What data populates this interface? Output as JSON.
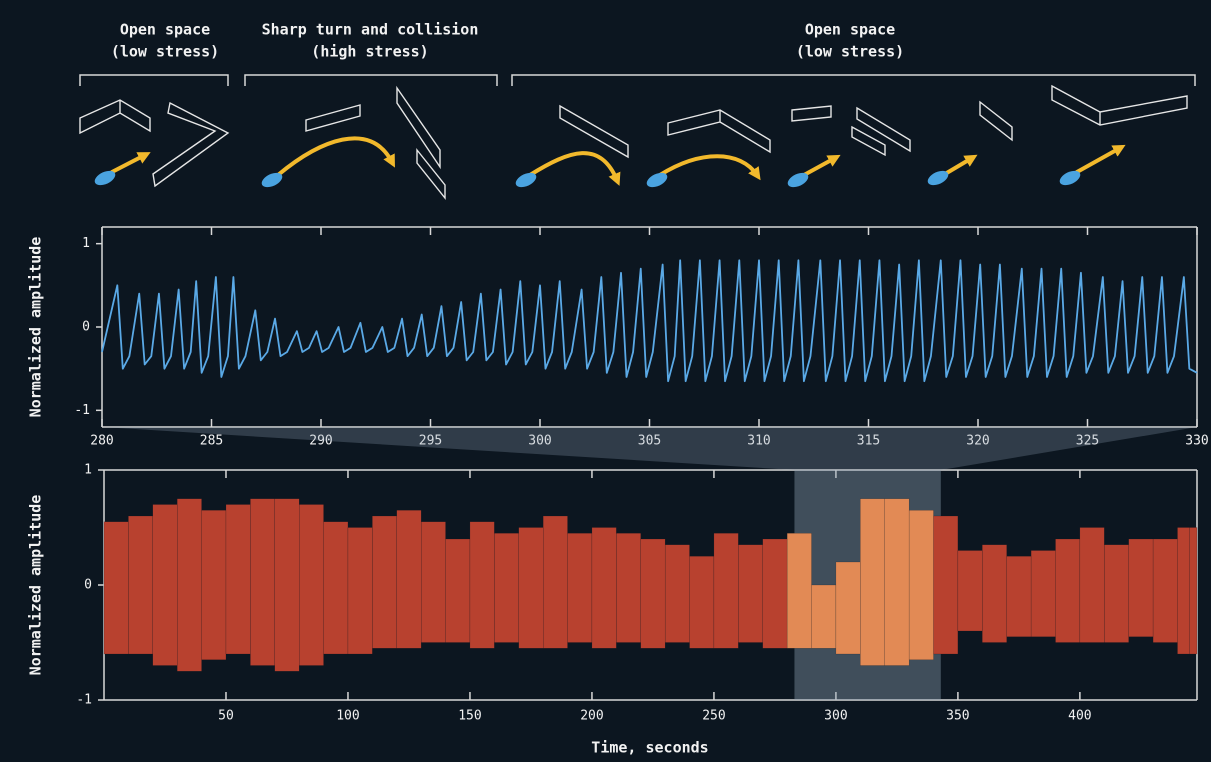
{
  "annotations": [
    {
      "lines": [
        "Open space",
        "(low stress)"
      ]
    },
    {
      "lines": [
        "Sharp turn and collision",
        "(high stress)"
      ]
    },
    {
      "lines": [
        "Open space",
        "(low stress)"
      ]
    }
  ],
  "chart_data": [
    {
      "type": "line",
      "ylabel": "Normalized amplitude",
      "color": "#5aa9e6",
      "xlim": [
        280,
        330
      ],
      "ylim": [
        -1.2,
        1.2
      ],
      "xticks": [
        280,
        285,
        290,
        295,
        300,
        305,
        310,
        315,
        320,
        325,
        330
      ],
      "yticks": [
        1,
        0,
        -1
      ],
      "x": [
        280.0,
        280.7,
        280.95,
        281.25,
        281.7,
        281.95,
        282.25,
        282.6,
        282.85,
        283.15,
        283.5,
        283.75,
        284.05,
        284.3,
        284.55,
        284.85,
        285.2,
        285.45,
        285.75,
        286.0,
        286.25,
        286.55,
        287.0,
        287.25,
        287.55,
        287.9,
        288.15,
        288.45,
        288.9,
        289.15,
        289.45,
        289.8,
        290.05,
        290.35,
        290.8,
        291.05,
        291.35,
        291.8,
        292.05,
        292.35,
        292.8,
        293.05,
        293.35,
        293.7,
        293.95,
        294.25,
        294.6,
        294.85,
        295.15,
        295.5,
        295.75,
        296.05,
        296.4,
        296.65,
        296.95,
        297.3,
        297.55,
        297.85,
        298.2,
        298.45,
        298.75,
        299.1,
        299.35,
        299.65,
        300.0,
        300.25,
        300.55,
        300.9,
        301.15,
        301.45,
        301.9,
        302.15,
        302.45,
        302.8,
        303.05,
        303.35,
        303.7,
        303.95,
        304.25,
        304.6,
        304.85,
        305.15,
        305.6,
        305.85,
        306.15,
        306.4,
        306.65,
        306.95,
        307.3,
        307.55,
        307.85,
        308.2,
        308.45,
        308.75,
        309.1,
        309.35,
        309.65,
        310.0,
        310.25,
        310.55,
        310.9,
        311.15,
        311.45,
        311.8,
        312.05,
        312.35,
        312.8,
        313.05,
        313.35,
        313.7,
        313.95,
        314.25,
        314.6,
        314.85,
        315.15,
        315.5,
        315.75,
        316.05,
        316.4,
        316.65,
        316.95,
        317.3,
        317.55,
        317.85,
        318.3,
        318.55,
        318.85,
        319.2,
        319.45,
        319.75,
        320.1,
        320.35,
        320.65,
        321.0,
        321.25,
        321.55,
        322.0,
        322.25,
        322.55,
        322.9,
        323.15,
        323.45,
        323.8,
        324.05,
        324.35,
        324.7,
        324.95,
        325.25,
        325.7,
        325.95,
        326.25,
        326.6,
        326.85,
        327.15,
        327.5,
        327.75,
        328.05,
        328.4,
        328.65,
        328.95,
        329.4,
        329.65,
        330.0
      ],
      "values": [
        -0.3,
        0.5,
        -0.5,
        -0.35,
        0.4,
        -0.45,
        -0.35,
        0.4,
        -0.5,
        -0.35,
        0.45,
        -0.5,
        -0.3,
        0.55,
        -0.55,
        -0.35,
        0.6,
        -0.6,
        -0.35,
        0.6,
        -0.5,
        -0.35,
        0.2,
        -0.4,
        -0.3,
        0.1,
        -0.35,
        -0.3,
        -0.05,
        -0.3,
        -0.25,
        -0.05,
        -0.3,
        -0.25,
        0.0,
        -0.3,
        -0.25,
        0.05,
        -0.3,
        -0.25,
        0.0,
        -0.3,
        -0.25,
        0.1,
        -0.35,
        -0.25,
        0.15,
        -0.35,
        -0.25,
        0.25,
        -0.35,
        -0.25,
        0.3,
        -0.4,
        -0.3,
        0.4,
        -0.4,
        -0.3,
        0.45,
        -0.45,
        -0.3,
        0.55,
        -0.45,
        -0.3,
        0.5,
        -0.5,
        -0.3,
        0.55,
        -0.5,
        -0.3,
        0.45,
        -0.5,
        -0.3,
        0.6,
        -0.55,
        -0.3,
        0.65,
        -0.6,
        -0.3,
        0.7,
        -0.6,
        -0.3,
        0.75,
        -0.65,
        -0.35,
        0.8,
        -0.65,
        -0.35,
        0.8,
        -0.65,
        -0.35,
        0.8,
        -0.65,
        -0.35,
        0.8,
        -0.65,
        -0.35,
        0.8,
        -0.65,
        -0.35,
        0.8,
        -0.65,
        -0.35,
        0.8,
        -0.65,
        -0.35,
        0.8,
        -0.65,
        -0.35,
        0.8,
        -0.65,
        -0.35,
        0.8,
        -0.65,
        -0.35,
        0.8,
        -0.65,
        -0.35,
        0.75,
        -0.65,
        -0.35,
        0.8,
        -0.65,
        -0.35,
        0.8,
        -0.6,
        -0.35,
        0.8,
        -0.6,
        -0.35,
        0.75,
        -0.6,
        -0.35,
        0.75,
        -0.6,
        -0.35,
        0.7,
        -0.6,
        -0.35,
        0.7,
        -0.6,
        -0.35,
        0.7,
        -0.6,
        -0.35,
        0.65,
        -0.55,
        -0.35,
        0.6,
        -0.55,
        -0.35,
        0.55,
        -0.55,
        -0.35,
        0.6,
        -0.55,
        -0.35,
        0.6,
        -0.55,
        -0.35,
        0.6,
        -0.5,
        -0.55
      ]
    },
    {
      "type": "band",
      "ylabel": "Normalized amplitude",
      "xlabel": "Time, seconds",
      "color": "#b8412f",
      "highlight_color": "#e28a55",
      "xlim": [
        0,
        448
      ],
      "ylim": [
        -1,
        1
      ],
      "xticks": [
        50,
        100,
        150,
        200,
        250,
        300,
        350,
        400
      ],
      "yticks": [
        1,
        0,
        -1
      ],
      "highlight": [
        283,
        343
      ],
      "x": [
        0,
        10,
        20,
        30,
        40,
        50,
        60,
        70,
        80,
        90,
        100,
        110,
        120,
        130,
        140,
        150,
        160,
        170,
        180,
        190,
        200,
        210,
        220,
        230,
        240,
        250,
        260,
        270,
        280,
        290,
        300,
        310,
        320,
        330,
        340,
        350,
        360,
        370,
        380,
        390,
        400,
        410,
        420,
        430,
        440,
        445
      ],
      "upper": [
        0.55,
        0.6,
        0.7,
        0.75,
        0.65,
        0.7,
        0.75,
        0.75,
        0.7,
        0.55,
        0.5,
        0.6,
        0.65,
        0.55,
        0.4,
        0.55,
        0.45,
        0.5,
        0.6,
        0.45,
        0.5,
        0.45,
        0.4,
        0.35,
        0.25,
        0.45,
        0.35,
        0.4,
        0.45,
        0.0,
        0.2,
        0.75,
        0.75,
        0.65,
        0.6,
        0.3,
        0.35,
        0.25,
        0.3,
        0.4,
        0.5,
        0.35,
        0.4,
        0.4,
        0.5,
        0.5
      ],
      "lower": [
        -0.6,
        -0.6,
        -0.7,
        -0.75,
        -0.65,
        -0.6,
        -0.7,
        -0.75,
        -0.7,
        -0.6,
        -0.6,
        -0.55,
        -0.55,
        -0.5,
        -0.5,
        -0.55,
        -0.5,
        -0.55,
        -0.55,
        -0.5,
        -0.55,
        -0.5,
        -0.55,
        -0.5,
        -0.55,
        -0.55,
        -0.5,
        -0.55,
        -0.55,
        -0.55,
        -0.6,
        -0.7,
        -0.7,
        -0.65,
        -0.6,
        -0.4,
        -0.5,
        -0.45,
        -0.45,
        -0.5,
        -0.5,
        -0.5,
        -0.45,
        -0.5,
        -0.6,
        -0.6
      ]
    }
  ]
}
